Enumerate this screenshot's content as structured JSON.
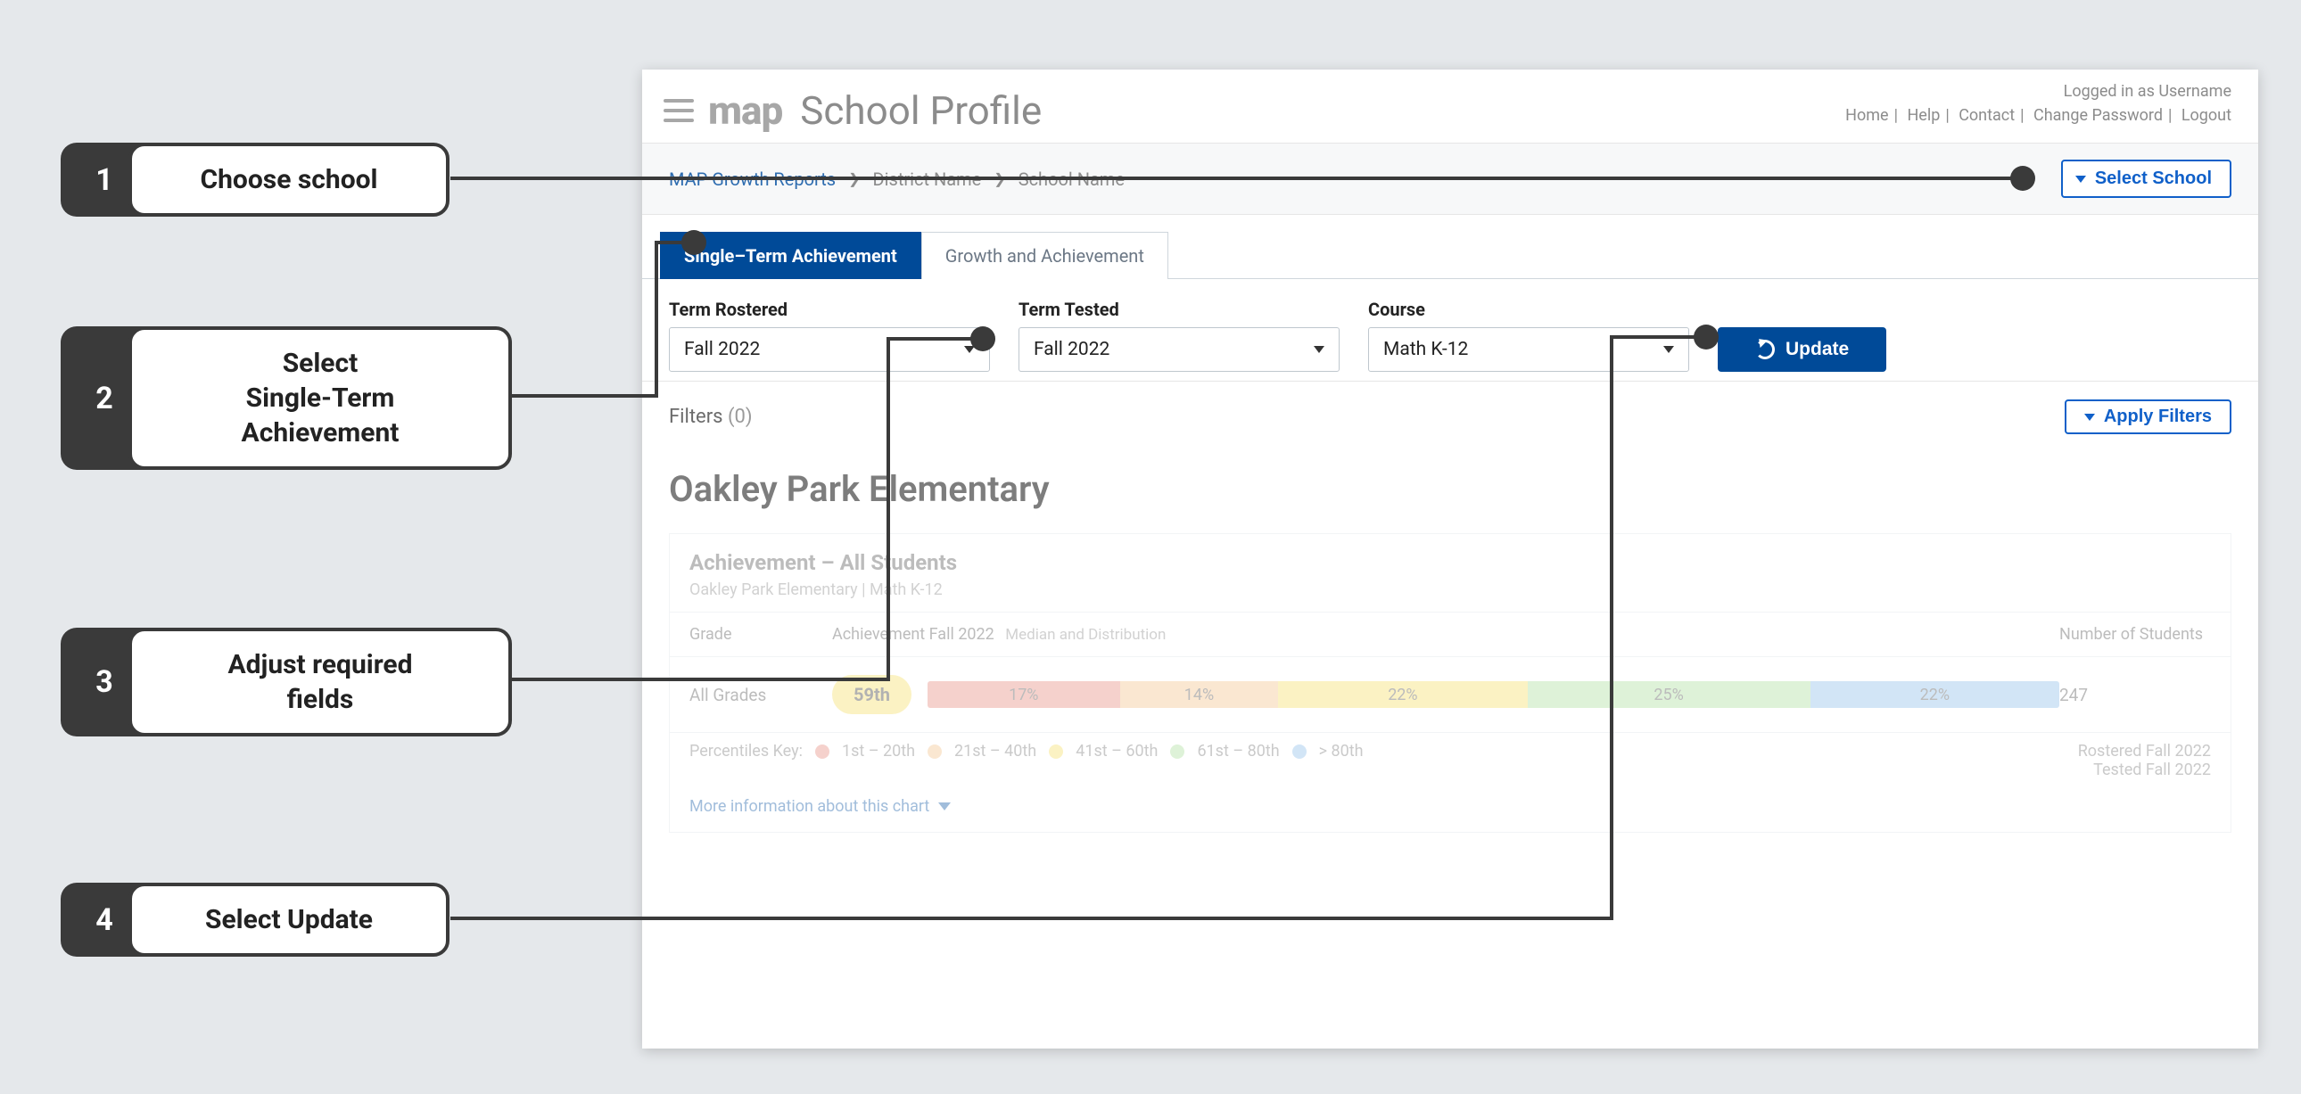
{
  "callouts": [
    {
      "num": "1",
      "label": "Choose school"
    },
    {
      "num": "2",
      "label": "Select\nSingle-Term\nAchievement"
    },
    {
      "num": "3",
      "label": "Adjust required\nfields"
    },
    {
      "num": "4",
      "label": "Select Update"
    }
  ],
  "header": {
    "logo": "map",
    "title": "School Profile",
    "logged_in": "Logged in as Username",
    "links": {
      "home": "Home",
      "help": "Help",
      "contact": "Contact",
      "change_pw": "Change Password",
      "logout": "Logout"
    }
  },
  "breadcrumb": {
    "a": "MAP Growth Reports",
    "b": "District Name",
    "c": "School Name",
    "select_school": "Select School"
  },
  "tabs": {
    "active": "Single–Term Achievement",
    "inactive": "Growth and Achievement"
  },
  "fields": {
    "term_rostered": {
      "label": "Term Rostered",
      "value": "Fall 2022"
    },
    "term_tested": {
      "label": "Term Tested",
      "value": "Fall 2022"
    },
    "course": {
      "label": "Course",
      "value": "Math K-12"
    },
    "update": "Update"
  },
  "filters": {
    "label": "Filters",
    "count": "(0)",
    "apply": "Apply Filters"
  },
  "school_name": "Oakley Park Elementary",
  "panel": {
    "title": "Achievement – All Students",
    "sub": "Oakley Park Elementary | Math K-12",
    "col_grade": "Grade",
    "col_ach": "Achievement Fall 2022",
    "col_ach_sub": "Median and Distribution",
    "col_num": "Number of Students",
    "row": {
      "grade": "All Grades",
      "pill": "59th",
      "students": "247",
      "segments": [
        {
          "label": "17%",
          "pct": 17,
          "color": "#e89a8f"
        },
        {
          "label": "14%",
          "pct": 14,
          "color": "#f3c99a"
        },
        {
          "label": "22%",
          "pct": 22,
          "color": "#f5e27a"
        },
        {
          "label": "25%",
          "pct": 25,
          "color": "#b7e2a8"
        },
        {
          "label": "22%",
          "pct": 22,
          "color": "#9cc6ec"
        }
      ]
    },
    "key_label": "Percentiles Key:",
    "key": [
      {
        "label": "1st – 20th",
        "color": "#e89a8f"
      },
      {
        "label": "21st – 40th",
        "color": "#f3c99a"
      },
      {
        "label": "41st – 60th",
        "color": "#f5e27a"
      },
      {
        "label": "61st – 80th",
        "color": "#b7e2a8"
      },
      {
        "label": "> 80th",
        "color": "#9cc6ec"
      }
    ],
    "rostered": "Rostered Fall 2022",
    "tested": "Tested Fall 2022",
    "more": "More information about this chart"
  }
}
